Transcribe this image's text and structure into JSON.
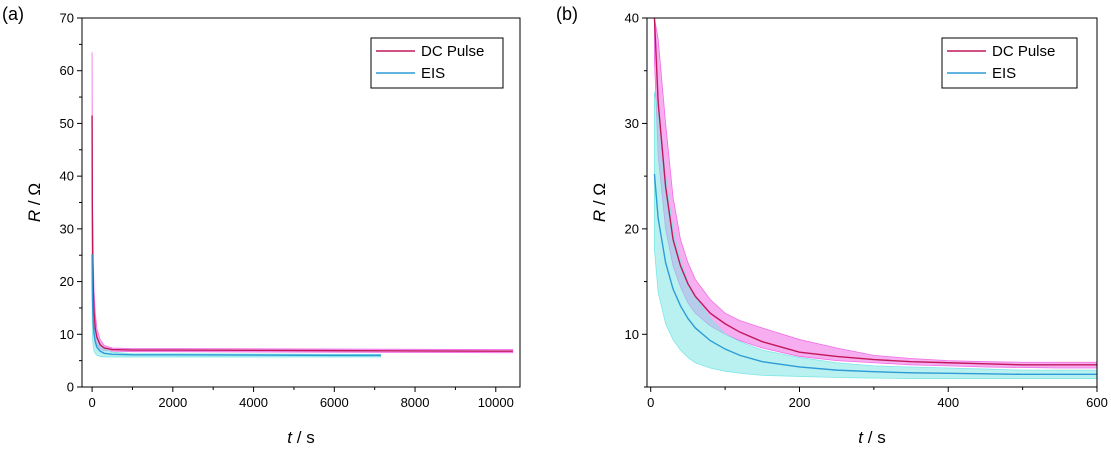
{
  "colors": {
    "dc_line": "#c2185b",
    "dc_band": "#f06ce6",
    "eis_line": "#2e9bd6",
    "eis_band": "#7fe6e6",
    "frame": "#000000"
  },
  "chart_data": [
    {
      "panel_label": "(a)",
      "type": "line",
      "xlabel_var": "t",
      "xlabel_unit": " / s",
      "ylabel_var": "R",
      "ylabel_unit": " / Ω",
      "xlim": [
        -250,
        10600
      ],
      "ylim": [
        0,
        70
      ],
      "xticks": [
        0,
        2000,
        4000,
        6000,
        8000,
        10000
      ],
      "yticks": [
        0,
        10,
        20,
        30,
        40,
        50,
        60,
        70
      ],
      "legend_position": "top-right",
      "series": [
        {
          "name": "DC Pulse",
          "color_key": "dc",
          "x": [
            0,
            5,
            15,
            30,
            50,
            80,
            120,
            200,
            300,
            500,
            1000,
            2000,
            4000,
            6000,
            8000,
            10000,
            10420
          ],
          "y": [
            51.5,
            35,
            24,
            18,
            14,
            11,
            9.4,
            8,
            7.4,
            7.1,
            7,
            7,
            6.95,
            6.9,
            6.85,
            6.8,
            6.8
          ],
          "band_upper": [
            63.5,
            45,
            32,
            24,
            18,
            14,
            11,
            9,
            7.9,
            7.4,
            7.3,
            7.3,
            7.25,
            7.2,
            7.15,
            7.1,
            7.1
          ],
          "band_lower": [
            40,
            28,
            19,
            14,
            11,
            9,
            8,
            7.2,
            6.9,
            6.8,
            6.7,
            6.7,
            6.65,
            6.6,
            6.55,
            6.5,
            6.5
          ]
        },
        {
          "name": "EIS",
          "color_key": "eis",
          "x": [
            0,
            5,
            15,
            30,
            50,
            80,
            120,
            200,
            300,
            500,
            1000,
            2000,
            4000,
            6000,
            7150
          ],
          "y": [
            25.2,
            19,
            15,
            12,
            10,
            8.5,
            7.5,
            6.8,
            6.4,
            6.2,
            6.1,
            6.1,
            6.05,
            6.0,
            6.0
          ],
          "band_upper": [
            32,
            26,
            20,
            16,
            13,
            11,
            9.5,
            8,
            7.2,
            6.6,
            6.3,
            6.3,
            6.25,
            6.2,
            6.2
          ],
          "band_lower": [
            18,
            12,
            9,
            7.5,
            6.8,
            6.3,
            6.0,
            5.8,
            5.7,
            5.7,
            5.7,
            5.7,
            5.7,
            5.7,
            5.7
          ]
        }
      ]
    },
    {
      "panel_label": "(b)",
      "type": "line",
      "xlabel_var": "t",
      "xlabel_unit": " / s",
      "ylabel_var": "R",
      "ylabel_unit": " / Ω",
      "xlim": [
        -5,
        600
      ],
      "ylim": [
        5,
        40
      ],
      "xticks": [
        0,
        200,
        400,
        600
      ],
      "yticks": [
        10,
        20,
        30,
        40
      ],
      "legend_position": "top-right",
      "series": [
        {
          "name": "DC Pulse",
          "color_key": "dc",
          "x": [
            5,
            10,
            20,
            30,
            40,
            50,
            60,
            80,
            100,
            120,
            150,
            200,
            250,
            300,
            350,
            400,
            450,
            500,
            550,
            600
          ],
          "y": [
            40,
            32,
            24,
            19,
            16.5,
            14.8,
            13.6,
            12,
            11,
            10.2,
            9.3,
            8.3,
            7.9,
            7.6,
            7.4,
            7.3,
            7.2,
            7.1,
            7.1,
            7.1
          ],
          "band_upper": [
            40,
            38,
            30,
            23,
            19,
            16.8,
            15.2,
            13.3,
            12,
            11.3,
            10.6,
            9.5,
            8.7,
            8.0,
            7.7,
            7.5,
            7.4,
            7.35,
            7.35,
            7.35
          ],
          "band_lower": [
            36,
            27,
            20,
            16.5,
            14.5,
            13,
            12,
            10.8,
            10,
            9.4,
            8.7,
            7.9,
            7.5,
            7.3,
            7.1,
            7.0,
            6.9,
            6.85,
            6.8,
            6.8
          ]
        },
        {
          "name": "EIS",
          "color_key": "eis",
          "x": [
            5,
            10,
            20,
            30,
            40,
            50,
            60,
            80,
            100,
            120,
            150,
            200,
            250,
            300,
            350,
            400,
            450,
            500,
            550,
            600
          ],
          "y": [
            25.2,
            21,
            16.8,
            14.3,
            12.7,
            11.5,
            10.6,
            9.4,
            8.6,
            8.0,
            7.4,
            6.9,
            6.6,
            6.45,
            6.35,
            6.3,
            6.25,
            6.2,
            6.2,
            6.2
          ],
          "band_upper": [
            33,
            31,
            25,
            20,
            17,
            15,
            13.5,
            11.5,
            10,
            9.3,
            8.5,
            7.8,
            7.3,
            7.0,
            6.9,
            6.8,
            6.7,
            6.6,
            6.6,
            6.6
          ],
          "band_lower": [
            18,
            14,
            11,
            9.5,
            8.5,
            7.8,
            7.3,
            6.8,
            6.5,
            6.3,
            6.1,
            6.0,
            5.9,
            5.85,
            5.8,
            5.8,
            5.8,
            5.8,
            5.8,
            5.8
          ]
        }
      ]
    }
  ]
}
